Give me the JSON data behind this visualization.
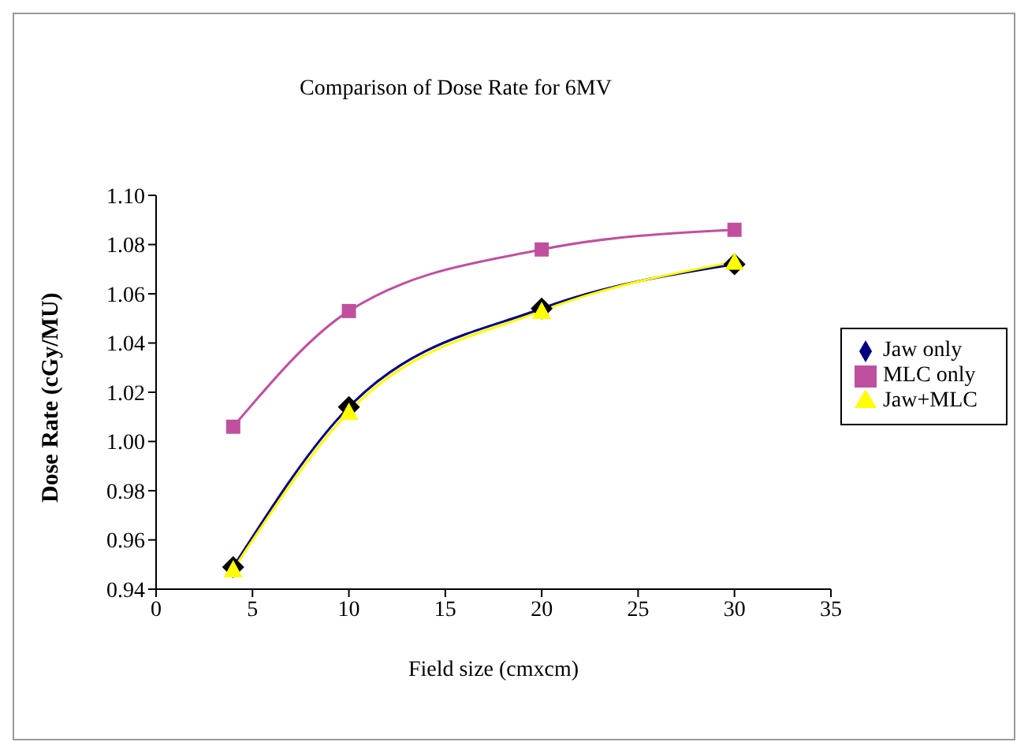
{
  "chart_data": {
    "type": "line",
    "title": "Comparison of Dose Rate for 6MV",
    "xlabel": "Field size (cmxcm)",
    "ylabel": "Dose Rate (cGy/MU)",
    "x": [
      4,
      10,
      20,
      30
    ],
    "series": [
      {
        "name": "Jaw only",
        "color": "#000080",
        "values": [
          0.949,
          1.014,
          1.054,
          1.072
        ],
        "marker": "diamond"
      },
      {
        "name": "MLC only",
        "color": "#c0509f",
        "values": [
          1.006,
          1.053,
          1.078,
          1.086
        ],
        "marker": "square"
      },
      {
        "name": "Jaw+MLC",
        "color": "#ffff00",
        "values": [
          0.948,
          1.012,
          1.053,
          1.073
        ],
        "marker": "triangle"
      }
    ],
    "xlim": [
      0,
      35
    ],
    "xticks": [
      0,
      5,
      10,
      15,
      20,
      25,
      30,
      35
    ],
    "ylim": [
      0.94,
      1.1
    ],
    "yticks": [
      {
        "value": 0.94,
        "label": "0.94"
      },
      {
        "value": 0.96,
        "label": "0.96"
      },
      {
        "value": 0.98,
        "label": "0.98"
      },
      {
        "value": 1.0,
        "label": "1.00"
      },
      {
        "value": 1.02,
        "label": "1.02"
      },
      {
        "value": 1.04,
        "label": "1.04"
      },
      {
        "value": 1.06,
        "label": "1.06"
      },
      {
        "value": 1.08,
        "label": "1.08"
      },
      {
        "value": 1.1,
        "label": "1.10"
      }
    ],
    "grid": false,
    "legend": "right",
    "line_style": "solid"
  }
}
